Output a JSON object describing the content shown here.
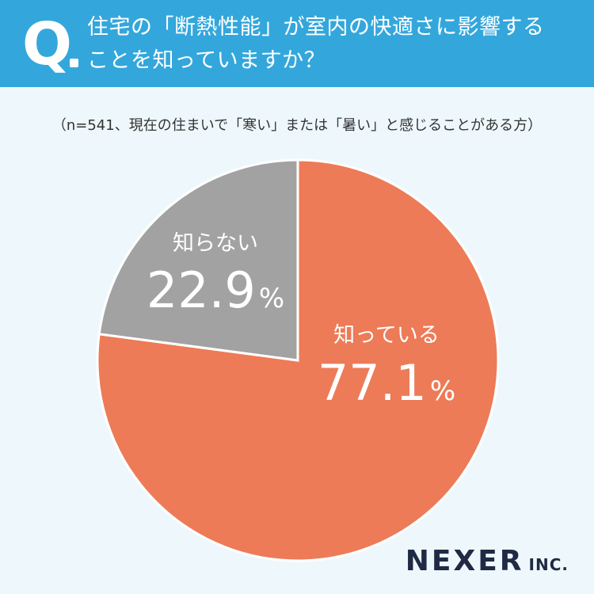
{
  "header": {
    "q_mark": "Q",
    "question_line1": "住宅の「断熱性能」が室内の快適さに影響する",
    "question_line2": "ことを知っていますか？"
  },
  "note": "（n=541、現在の住まいで「寒い」または「暑い」と感じることがある方）",
  "chart_data": {
    "type": "pie",
    "slices": [
      {
        "label": "知っている",
        "value": 77.1,
        "value_text": "77.1",
        "unit": "%",
        "color": "#ed7b57"
      },
      {
        "label": "知らない",
        "value": 22.9,
        "value_text": "22.9",
        "unit": "%",
        "color": "#a2a2a2"
      }
    ],
    "start": "12 o'clock",
    "direction": "clockwise"
  },
  "brand": {
    "name": "NEXER",
    "suffix": "INC."
  },
  "colors": {
    "header_bg": "#33a7dc",
    "background": "#eef8fc",
    "text": "#333333",
    "brand": "#1f2a44"
  }
}
